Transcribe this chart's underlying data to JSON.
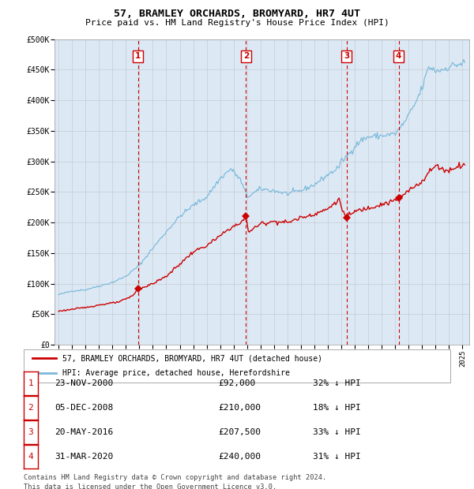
{
  "title": "57, BRAMLEY ORCHARDS, BROMYARD, HR7 4UT",
  "subtitle": "Price paid vs. HM Land Registry's House Price Index (HPI)",
  "legend_line1": "57, BRAMLEY ORCHARDS, BROMYARD, HR7 4UT (detached house)",
  "legend_line2": "HPI: Average price, detached house, Herefordshire",
  "footer1": "Contains HM Land Registry data © Crown copyright and database right 2024.",
  "footer2": "This data is licensed under the Open Government Licence v3.0.",
  "sales": [
    {
      "num": 1,
      "date_dec": 2000.9,
      "price": 92000,
      "label": "23-NOV-2000",
      "pct": "32% ↓ HPI"
    },
    {
      "num": 2,
      "date_dec": 2008.92,
      "price": 210000,
      "label": "05-DEC-2008",
      "pct": "18% ↓ HPI"
    },
    {
      "num": 3,
      "date_dec": 2016.38,
      "price": 207500,
      "label": "20-MAY-2016",
      "pct": "33% ↓ HPI"
    },
    {
      "num": 4,
      "date_dec": 2020.25,
      "price": 240000,
      "label": "31-MAR-2020",
      "pct": "31% ↓ HPI"
    }
  ],
  "hpi_color": "#7ab8d9",
  "price_color": "#cc0000",
  "vline_color": "#cc0000",
  "bg_color": "#dce9f5",
  "grid_color": "#bbbbbb",
  "box_color": "#cc0000",
  "ylim": [
    0,
    500000
  ],
  "xlim_start": 1994.7,
  "xlim_end": 2025.5,
  "yticks": [
    0,
    50000,
    100000,
    150000,
    200000,
    250000,
    300000,
    350000,
    400000,
    450000,
    500000
  ],
  "ytick_labels": [
    "£0",
    "£50K",
    "£100K",
    "£150K",
    "£200K",
    "£250K",
    "£300K",
    "£350K",
    "£400K",
    "£450K",
    "£500K"
  ]
}
